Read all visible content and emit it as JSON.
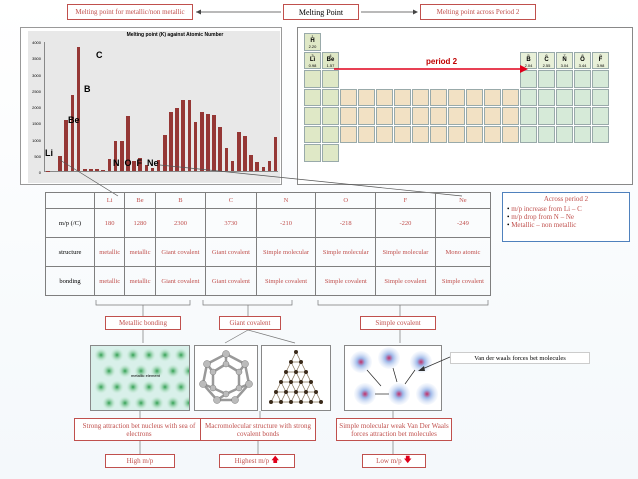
{
  "top": {
    "left_box": "Melting point for metallic/non metallic",
    "center_box": "Melting Point",
    "right_box": "Melting point across Period 2"
  },
  "graph": {
    "title": "Melting point (K) against Atomic Number",
    "labels": {
      "c": "C",
      "b": "B",
      "be": "Be",
      "li": "Li",
      "nofne": "N  O  F  Ne"
    }
  },
  "chart_data": {
    "type": "bar",
    "title": "Melting point (K) against Atomic Number",
    "ylim": [
      0,
      4000
    ],
    "yticks": [
      "4000",
      "3500",
      "3000",
      "2500",
      "2000",
      "1500",
      "1000",
      "500",
      "0"
    ],
    "values": [
      14,
      1,
      454,
      1560,
      2348,
      3823,
      63,
      55,
      54,
      25,
      371,
      923,
      933,
      1687,
      317,
      388,
      172,
      84,
      337,
      1115,
      1814,
      1941,
      2183,
      2180,
      1519,
      1811,
      1768,
      1728,
      1358,
      693,
      303,
      1211,
      1090,
      494,
      266,
      116,
      312,
      1050
    ]
  },
  "periodic": {
    "period2_label": "period 2",
    "cells": [
      {
        "sym": "H",
        "num": "1",
        "en": "2.20"
      },
      {
        "sym": "Li",
        "num": "3",
        "en": "0.98"
      },
      {
        "sym": "Be",
        "num": "4",
        "en": "1.57"
      },
      {
        "sym": "B",
        "num": "5",
        "en": "2.04"
      },
      {
        "sym": "C",
        "num": "6",
        "en": "2.55"
      },
      {
        "sym": "N",
        "num": "7",
        "en": "3.04"
      },
      {
        "sym": "O",
        "num": "8",
        "en": "3.44"
      },
      {
        "sym": "F",
        "num": "9",
        "en": "3.98"
      }
    ]
  },
  "table": {
    "headers": [
      "Li",
      "Be",
      "B",
      "C",
      "N",
      "O",
      "F",
      "Ne"
    ],
    "rows": [
      {
        "label": "m/p (/C)",
        "cells": [
          "180",
          "1280",
          "2300",
          "3730",
          "-210",
          "-218",
          "-220",
          "-249"
        ]
      },
      {
        "label": "structure",
        "cells": [
          "metallic",
          "metallic",
          "Giant covalent",
          "Giant covalent",
          "Simple molecular",
          "Simple molecular",
          "Simple molecular",
          "Mono atomic"
        ]
      },
      {
        "label": "bonding",
        "cells": [
          "metallic",
          "metallic",
          "Giant covalent",
          "Giant covalent",
          "Simple covalent",
          "Simple covalent",
          "Simple covalent",
          "Simple covalent"
        ]
      }
    ]
  },
  "across": {
    "title": "Across period 2",
    "items": [
      "m/p increase from Li – C",
      "m/p drop from N – Ne",
      "Metallic – non metallic"
    ]
  },
  "categories": {
    "metallic": "Metallic bonding",
    "giant": "Giant covalent",
    "simple": "Simple covalent"
  },
  "image_text": {
    "metallic_label": "metallic element"
  },
  "vdw_label": "Van der waals forces bet molecules",
  "descriptions": {
    "metallic": "Strong attraction bet nucleus with sea of electrons",
    "giant": "Macromolecular structure with strong covalent bonds",
    "simple": "Simple molecular weak Van Der Waals forces attraction bet molecules"
  },
  "results": {
    "high": "High m/p",
    "highest": "Highest m/p",
    "low": "Low m/p"
  },
  "colors": {
    "accent_red": "#c0504d",
    "bar": "#953735",
    "blue": "#4f81bd"
  }
}
